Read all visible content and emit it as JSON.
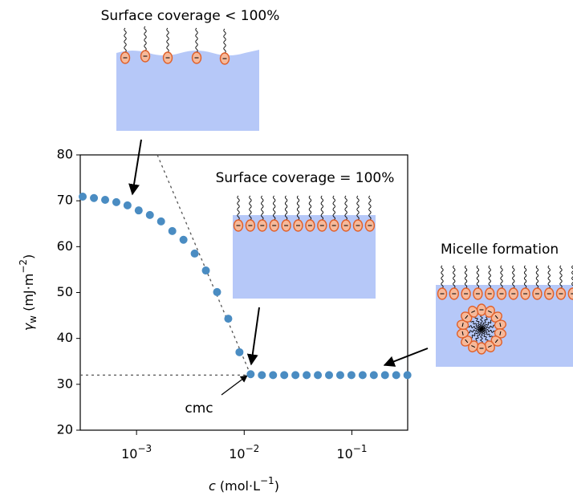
{
  "chart_data": {
    "type": "scatter",
    "annotations": [
      "Surface coverage < 100%",
      "Surface coverage = 100%",
      "Micelle formation",
      "cmc"
    ],
    "xlabel": [
      "c",
      " (mol·L",
      "−1",
      ")"
    ],
    "ylabel": [
      "γ",
      "w",
      " (mJ·m",
      "−2",
      ")"
    ],
    "log_x": true,
    "xlim": [
      0.0003,
      0.33
    ],
    "ylim": [
      20,
      80
    ],
    "xticks": [
      {
        "value": 0.001,
        "label": "10",
        "exponent": "−3"
      },
      {
        "value": 0.01,
        "label": "10",
        "exponent": "−2"
      },
      {
        "value": 0.1,
        "label": "10",
        "exponent": "−1"
      }
    ],
    "yticks": [
      20,
      30,
      40,
      50,
      60,
      70,
      80
    ],
    "color": "#4a8cc2",
    "x": [
      0.000316,
      0.000402,
      0.000511,
      0.000649,
      0.000824,
      0.001047,
      0.00133,
      0.00169,
      0.002148,
      0.002729,
      0.003467,
      0.004406,
      0.005598,
      0.007112,
      0.009036,
      0.01148,
      0.01459,
      0.01854,
      0.02355,
      0.02992,
      0.03802,
      0.04831,
      0.06138,
      0.07798,
      0.09908,
      0.1259,
      0.16,
      0.2032,
      0.2582,
      0.3281
    ],
    "values": [
      70.9,
      70.6,
      70.2,
      69.7,
      69.0,
      67.9,
      66.9,
      65.5,
      63.4,
      61.5,
      58.5,
      54.8,
      50.1,
      44.3,
      37.0,
      32.2,
      32,
      32,
      32,
      32,
      32,
      32,
      32,
      32,
      32,
      32,
      32,
      32,
      32,
      32
    ],
    "guides": [
      {
        "x": [
          0.0003,
          0.0115
        ],
        "y": [
          32,
          32
        ]
      },
      {
        "x": [
          0.00156,
          0.0115
        ],
        "y": [
          80,
          32
        ]
      }
    ]
  }
}
